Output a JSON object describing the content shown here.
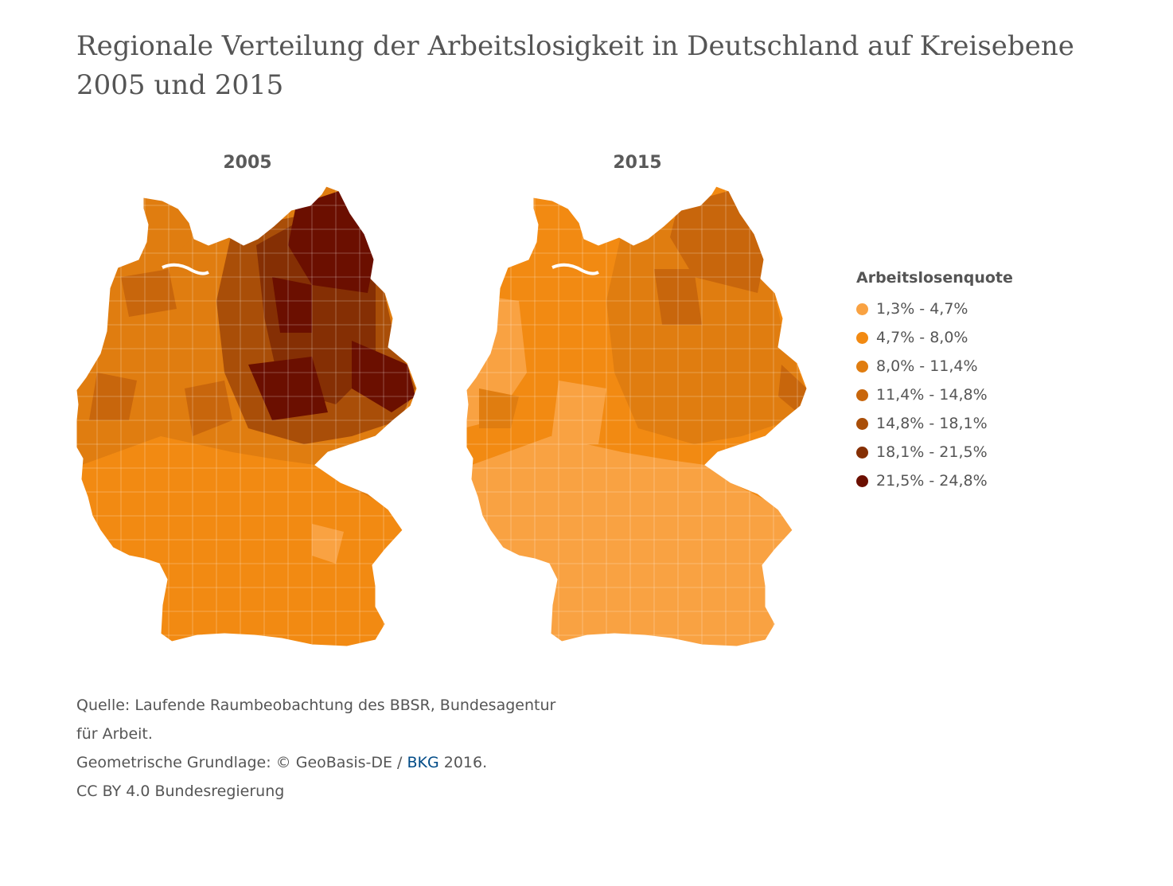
{
  "title_line1": "Regionale Verteilung der Arbeitslosigkeit in Deutschland auf Kreisebene",
  "title_line2": "2005 und 2015",
  "maps": [
    {
      "year": "2005"
    },
    {
      "year": "2015"
    }
  ],
  "legend": {
    "title": "Arbeitslosenquote",
    "classes": [
      {
        "label": "1,3% - 4,7%",
        "color": "#f9a242"
      },
      {
        "label": "4,7% - 8,0%",
        "color": "#f28a12"
      },
      {
        "label": "8,0% - 11,4%",
        "color": "#e07d10"
      },
      {
        "label": "11,4% - 14,8%",
        "color": "#c8660c"
      },
      {
        "label": "14,8% - 18,1%",
        "color": "#a94e08"
      },
      {
        "label": "18,1% - 21,5%",
        "color": "#852f04"
      },
      {
        "label": "21,5% - 24,8%",
        "color": "#6b0f00"
      }
    ]
  },
  "source": {
    "line1": "Quelle: Laufende Raumbeobachtung des BBSR, Bundesagentur",
    "line2": "für Arbeit.",
    "line3_prefix": "Geometrische Grundlage: © GeoBasis-DE / ",
    "line3_link": "BKG",
    "line3_suffix": " 2016.",
    "line4": "CC BY 4.0 Bundesregierung"
  }
}
